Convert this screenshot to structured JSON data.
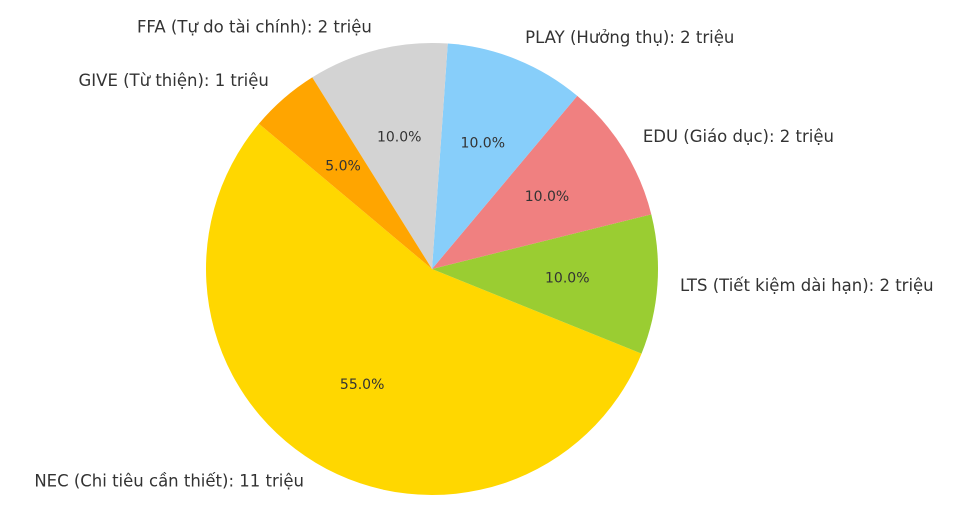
{
  "chart_data": {
    "type": "pie",
    "categories": [
      "NEC (Chi tiêu cần thiết): 11 triệu",
      "LTS (Tiết kiệm dài hạn): 2 triệu",
      "EDU (Giáo dục): 2 triệu",
      "PLAY (Hưởng thụ): 2 triệu",
      "FFA (Tự do tài chính): 2 triệu",
      "GIVE (Từ thiện): 1 triệu"
    ],
    "values": [
      55,
      10,
      10,
      10,
      10,
      5
    ],
    "value_labels": [
      "55.0%",
      "10.0%",
      "10.0%",
      "10.0%",
      "10.0%",
      "5.0%"
    ],
    "colors": [
      "#ffd700",
      "#9acd32",
      "#f08080",
      "#87cefa",
      "#d3d3d3",
      "#ffa500"
    ]
  }
}
